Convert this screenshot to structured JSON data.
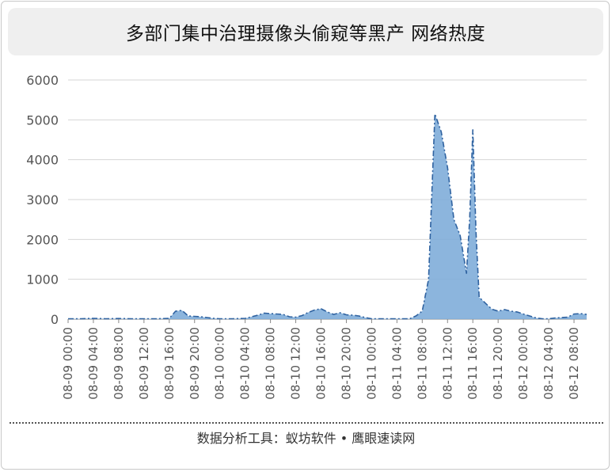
{
  "chart_data": {
    "type": "area",
    "title": "多部门集中治理摄像头偷窥等黑产 网络热度",
    "xlabel": "",
    "ylabel": "",
    "ylim": [
      0,
      6000
    ],
    "yticks": [
      0,
      1000,
      2000,
      3000,
      4000,
      5000,
      6000
    ],
    "xticks": [
      "08-09 00:00",
      "08-09 04:00",
      "08-09 08:00",
      "08-09 12:00",
      "08-09 16:00",
      "08-09 20:00",
      "08-10 00:00",
      "08-10 04:00",
      "08-10 08:00",
      "08-10 12:00",
      "08-10 16:00",
      "08-10 20:00",
      "08-11 00:00",
      "08-11 04:00",
      "08-11 08:00",
      "08-11 12:00",
      "08-11 16:00",
      "08-11 20:00",
      "08-12 00:00",
      "08-12 04:00",
      "08-12 08:00"
    ],
    "grid": true,
    "legend": "none",
    "series": [
      {
        "fill_color": "#7fadd9",
        "line_color": "#2f62a0",
        "x_hours": [
          0,
          2,
          4,
          6,
          8,
          10,
          12,
          14,
          16,
          17,
          18,
          19,
          20,
          21,
          22,
          23,
          24,
          26,
          28,
          29,
          30,
          31,
          32,
          33,
          34,
          35,
          36,
          37,
          38,
          39,
          40,
          41,
          42,
          43,
          44,
          45,
          46,
          47,
          48,
          50,
          52,
          54,
          55,
          56,
          56.5,
          57,
          58,
          59,
          60,
          61,
          62,
          63,
          63.5,
          64,
          64.5,
          65,
          66,
          67,
          68,
          69,
          70,
          71,
          72,
          73,
          74,
          75,
          76,
          77,
          78,
          79,
          80,
          81,
          82
        ],
        "values": [
          10,
          10,
          20,
          10,
          15,
          10,
          10,
          10,
          20,
          200,
          220,
          80,
          70,
          60,
          40,
          20,
          10,
          10,
          20,
          60,
          100,
          150,
          140,
          130,
          120,
          60,
          50,
          90,
          170,
          230,
          260,
          180,
          120,
          160,
          110,
          100,
          80,
          40,
          10,
          10,
          10,
          10,
          80,
          200,
          600,
          1000,
          5150,
          4700,
          3800,
          2500,
          2100,
          1150,
          2500,
          4750,
          2200,
          550,
          400,
          250,
          200,
          240,
          200,
          180,
          130,
          80,
          30,
          10,
          10,
          30,
          40,
          50,
          130,
          140,
          120
        ]
      }
    ]
  },
  "footer": {
    "text": "数据分析工具：蚁坊软件 • 鹰眼速读网"
  }
}
